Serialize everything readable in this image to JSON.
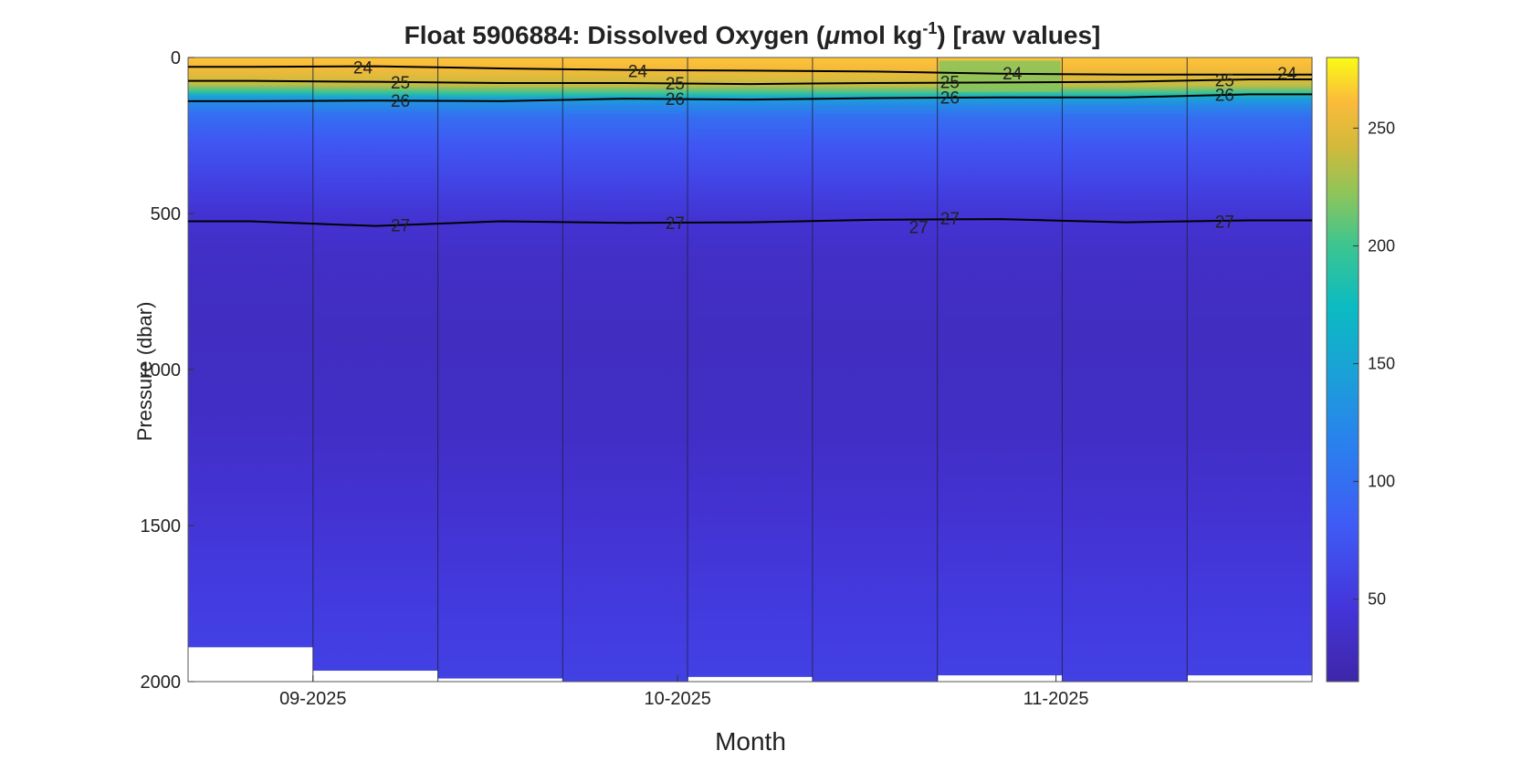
{
  "chart_data": {
    "type": "heatmap",
    "title": {
      "prefix": "Float  5906884:  Dissolved  Oxygen  (",
      "mu": "μ",
      "unit_mid": "mol  kg",
      "exponent": "-1",
      "suffix": ")  [raw  values]"
    },
    "xlabel": "Month",
    "ylabel": "Pressure (dbar)",
    "x_ticks": [
      "09-2025",
      "10-2025",
      "11-2025"
    ],
    "y_ticks": [
      0,
      500,
      1000,
      1500,
      2000
    ],
    "ylim": [
      0,
      2000
    ],
    "y_reversed": true,
    "colorbar": {
      "colormap": "parula",
      "range": [
        15,
        280
      ],
      "ticks": [
        50,
        100,
        150,
        200,
        250
      ]
    },
    "profiles": [
      {
        "index": 1,
        "max_pressure": 1890,
        "surface_oxygen": 265,
        "green_band": false
      },
      {
        "index": 2,
        "max_pressure": 1965,
        "surface_oxygen": 265,
        "green_band": false
      },
      {
        "index": 3,
        "max_pressure": 1990,
        "surface_oxygen": 265,
        "green_band": false
      },
      {
        "index": 4,
        "max_pressure": 2000,
        "surface_oxygen": 262,
        "green_band": false
      },
      {
        "index": 5,
        "max_pressure": 1985,
        "surface_oxygen": 262,
        "green_band": false
      },
      {
        "index": 6,
        "max_pressure": 2000,
        "surface_oxygen": 260,
        "green_band": false
      },
      {
        "index": 7,
        "max_pressure": 1980,
        "surface_oxygen": 200,
        "green_band": true
      },
      {
        "index": 8,
        "max_pressure": 2000,
        "surface_oxygen": 258,
        "green_band": false
      },
      {
        "index": 9,
        "max_pressure": 1980,
        "surface_oxygen": 255,
        "green_band": false
      }
    ],
    "contours": [
      {
        "label": "24",
        "depths": [
          30,
          28,
          35,
          40,
          42,
          45,
          52,
          55,
          55
        ],
        "label_positions": [
          {
            "profile": 1.4,
            "depth": 33
          },
          {
            "profile": 3.6,
            "depth": 45
          },
          {
            "profile": 6.6,
            "depth": 52
          },
          {
            "profile": 8.8,
            "depth": 52
          }
        ]
      },
      {
        "label": "25",
        "depths": [
          75,
          78,
          82,
          82,
          85,
          82,
          80,
          78,
          70
        ],
        "label_positions": [
          {
            "profile": 1.7,
            "depth": 82
          },
          {
            "profile": 3.9,
            "depth": 85
          },
          {
            "profile": 6.1,
            "depth": 80
          },
          {
            "profile": 8.3,
            "depth": 75
          }
        ]
      },
      {
        "label": "26",
        "depths": [
          140,
          138,
          140,
          132,
          135,
          130,
          128,
          128,
          118
        ],
        "label_positions": [
          {
            "profile": 1.7,
            "depth": 140
          },
          {
            "profile": 3.9,
            "depth": 135
          },
          {
            "profile": 6.1,
            "depth": 130
          },
          {
            "profile": 8.3,
            "depth": 122
          }
        ]
      },
      {
        "label": "27",
        "depths": [
          525,
          540,
          525,
          530,
          528,
          520,
          518,
          528,
          522
        ],
        "label_positions": [
          {
            "profile": 1.7,
            "depth": 540
          },
          {
            "profile": 3.9,
            "depth": 532
          },
          {
            "profile": 6.1,
            "depth": 518
          },
          {
            "profile": 5.85,
            "depth": 545
          },
          {
            "profile": 8.3,
            "depth": 528
          }
        ]
      }
    ]
  }
}
